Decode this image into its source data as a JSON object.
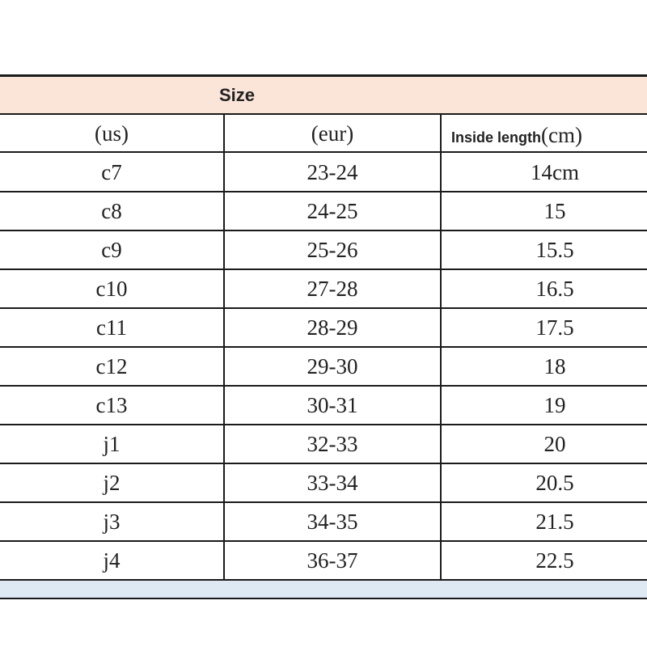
{
  "table": {
    "title": "Size",
    "columns": [
      "(us)",
      "(eur)",
      [
        "Inside length",
        "(cm)"
      ]
    ],
    "rows": [
      [
        "c7",
        "23-24",
        "14cm"
      ],
      [
        "c8",
        "24-25",
        "15"
      ],
      [
        "c9",
        "25-26",
        "15.5"
      ],
      [
        "c10",
        "27-28",
        "16.5"
      ],
      [
        "c11",
        "28-29",
        "17.5"
      ],
      [
        "c12",
        "29-30",
        "18"
      ],
      [
        "c13",
        "30-31",
        "19"
      ],
      [
        "j1",
        "32-33",
        "20"
      ],
      [
        "j2",
        "33-34",
        "20.5"
      ],
      [
        "j3",
        "34-35",
        "21.5"
      ],
      [
        "j4",
        "36-37",
        "22.5"
      ]
    ]
  }
}
